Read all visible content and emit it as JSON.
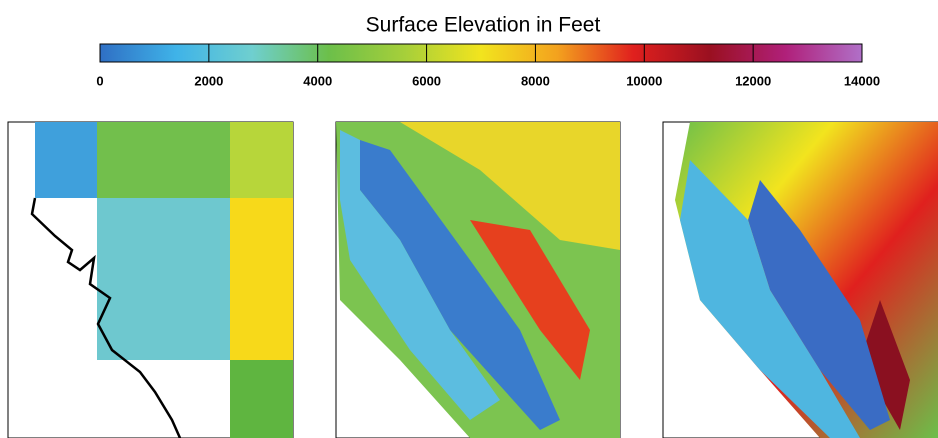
{
  "chart_data": {
    "type": "colorbar",
    "title": "Surface Elevation in Feet",
    "clim": [
      0,
      14000
    ],
    "ticks": [
      0,
      2000,
      4000,
      6000,
      8000,
      10000,
      12000,
      14000
    ],
    "colors": [
      "#2f6fc4",
      "#3fb3e8",
      "#6fcfcf",
      "#6cbf4a",
      "#a6cf3a",
      "#f2e41e",
      "#f3a21e",
      "#e0201e",
      "#9a1020",
      "#b0207a",
      "#b070c8"
    ]
  }
}
